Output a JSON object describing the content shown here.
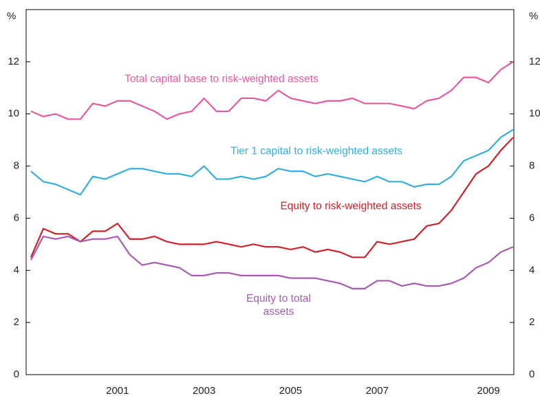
{
  "chart_data": {
    "type": "line",
    "ylabel": "%",
    "y2label": "%",
    "categories": [
      null,
      null,
      null,
      null,
      null,
      null,
      null,
      "2001",
      null,
      null,
      null,
      null,
      null,
      null,
      "2003",
      null,
      null,
      null,
      null,
      null,
      null,
      "2005",
      null,
      null,
      null,
      null,
      null,
      null,
      "2007",
      null,
      null,
      null,
      null,
      null,
      null,
      null,
      null,
      "2009",
      null,
      null
    ],
    "ylim": [
      0,
      14
    ],
    "yticks": [
      0,
      2,
      4,
      6,
      8,
      10,
      12
    ],
    "y2lim": [
      0,
      14
    ],
    "y2ticks": [
      0,
      2,
      4,
      6,
      8,
      10,
      12
    ],
    "grid": false,
    "series": [
      {
        "name": "Total capital base to risk-weighted assets",
        "color": "#e8589f",
        "values": [
          10.1,
          9.9,
          10.0,
          9.8,
          9.8,
          10.4,
          10.3,
          10.5,
          10.5,
          10.3,
          10.1,
          9.8,
          10.0,
          10.1,
          10.6,
          10.1,
          10.1,
          10.6,
          10.6,
          10.5,
          10.9,
          10.6,
          10.5,
          10.4,
          10.5,
          10.5,
          10.6,
          10.4,
          10.4,
          10.4,
          10.3,
          10.2,
          10.5,
          10.6,
          10.9,
          11.4,
          11.4,
          11.2,
          11.7,
          12.0
        ]
      },
      {
        "name": "Tier 1 capital to risk-weighted assets",
        "color": "#33aee0",
        "values": [
          7.8,
          7.4,
          7.3,
          7.1,
          6.9,
          7.6,
          7.5,
          7.7,
          7.9,
          7.9,
          7.8,
          7.7,
          7.7,
          7.6,
          8.0,
          7.5,
          7.5,
          7.6,
          7.5,
          7.6,
          7.9,
          7.8,
          7.8,
          7.6,
          7.7,
          7.6,
          7.5,
          7.4,
          7.6,
          7.4,
          7.4,
          7.2,
          7.3,
          7.3,
          7.6,
          8.2,
          8.4,
          8.6,
          9.1,
          9.4
        ]
      },
      {
        "name": "Equity to risk-weighted assets",
        "color": "#cc2229",
        "values": [
          4.5,
          5.6,
          5.4,
          5.4,
          5.1,
          5.5,
          5.5,
          5.8,
          5.2,
          5.2,
          5.3,
          5.1,
          5.0,
          5.0,
          5.0,
          5.1,
          5.0,
          4.9,
          5.0,
          4.9,
          4.9,
          4.8,
          4.9,
          4.7,
          4.8,
          4.7,
          4.5,
          4.5,
          5.1,
          5.0,
          5.1,
          5.2,
          5.7,
          5.8,
          6.3,
          7.0,
          7.7,
          8.0,
          8.6,
          9.1
        ]
      },
      {
        "name": "Equity to total assets",
        "color": "#a55bb0",
        "values": [
          4.4,
          5.3,
          5.2,
          5.3,
          5.1,
          5.2,
          5.2,
          5.3,
          4.6,
          4.2,
          4.3,
          4.2,
          4.1,
          3.8,
          3.8,
          3.9,
          3.9,
          3.8,
          3.8,
          3.8,
          3.8,
          3.7,
          3.7,
          3.7,
          3.6,
          3.5,
          3.3,
          3.3,
          3.6,
          3.6,
          3.4,
          3.5,
          3.4,
          3.4,
          3.5,
          3.7,
          4.1,
          4.3,
          4.7,
          4.9
        ]
      }
    ]
  }
}
